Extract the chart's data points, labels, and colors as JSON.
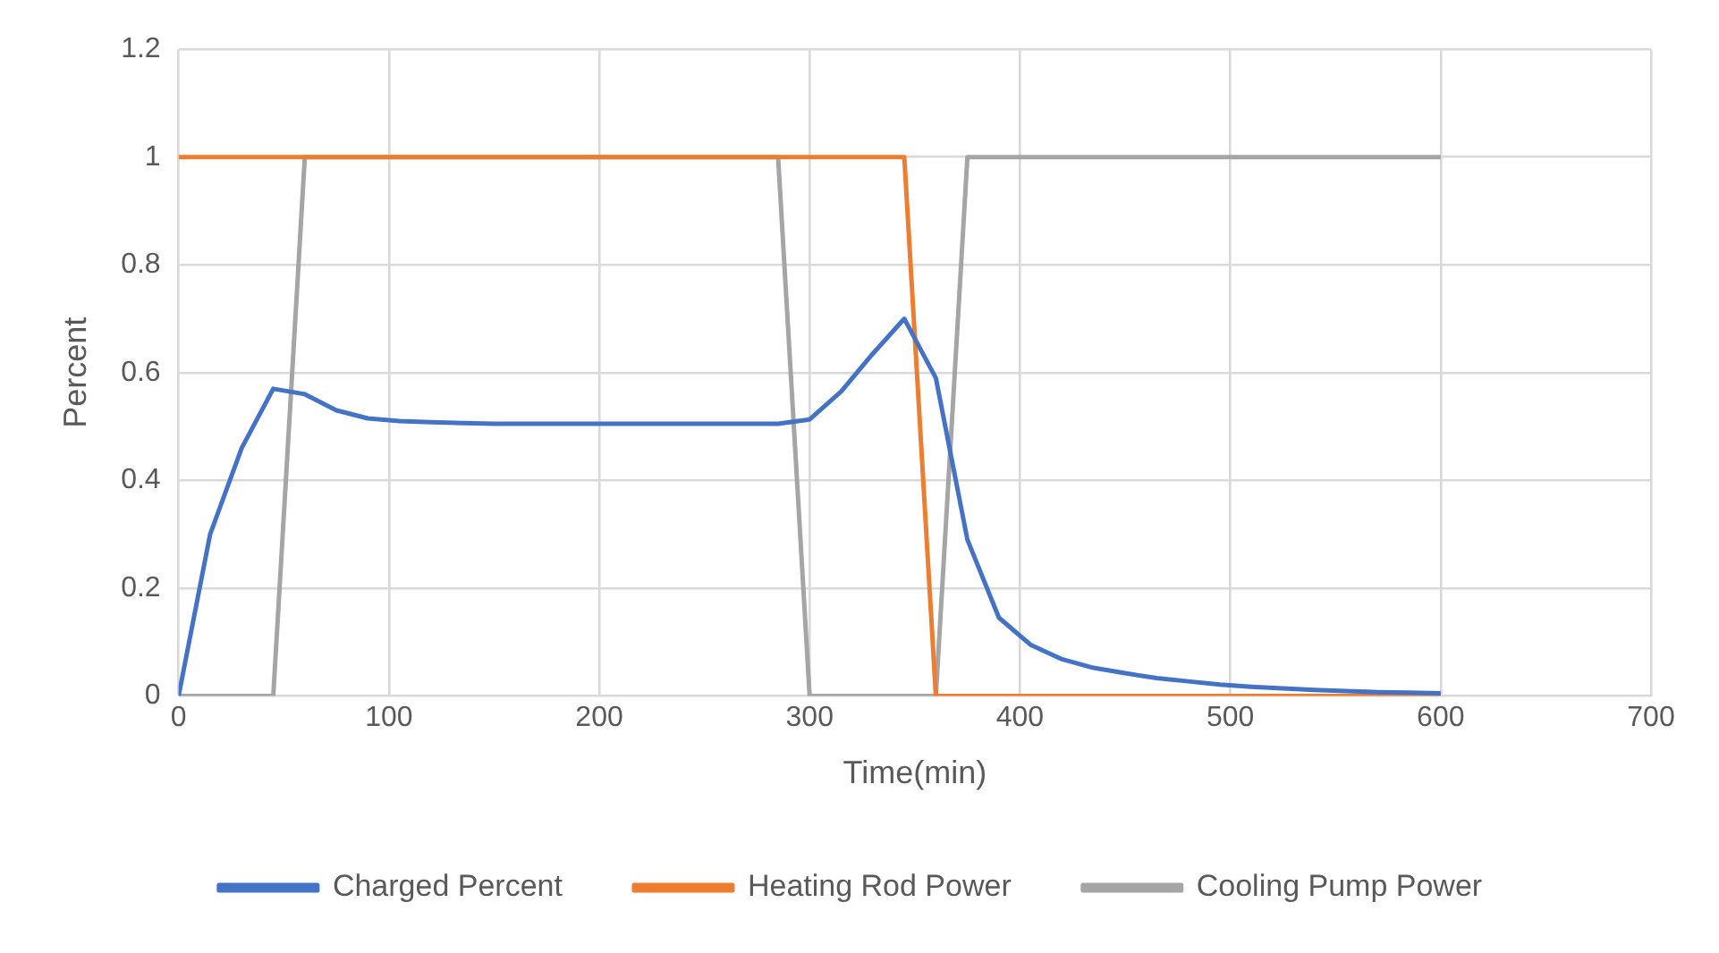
{
  "chart_data": {
    "type": "line",
    "xlabel": "Time(min)",
    "ylabel": "Percent",
    "xlim": [
      0,
      700
    ],
    "xticks": [
      0,
      100,
      200,
      300,
      400,
      500,
      600,
      700
    ],
    "ylim": [
      0,
      1.2
    ],
    "yticks": [
      0,
      {
        "value": 0.2,
        "label": "0.2"
      },
      {
        "value": 0.4,
        "label": "0.4"
      },
      {
        "value": 0.6,
        "label": "0.6"
      },
      {
        "value": 0.8,
        "label": "0.8"
      },
      1,
      {
        "value": 1.2,
        "label": "1.2"
      }
    ],
    "grid": true,
    "legend": "bottom",
    "marker": "none",
    "line_style": "solid",
    "series": [
      {
        "name": "Charged Percent",
        "color": "#4472c4",
        "x": [
          0,
          15,
          30,
          45,
          60,
          75,
          90,
          105,
          120,
          150,
          200,
          250,
          285,
          300,
          315,
          330,
          345,
          360,
          375,
          390,
          405,
          420,
          435,
          450,
          465,
          480,
          495,
          510,
          525,
          540,
          555,
          570,
          585,
          600
        ],
        "values": [
          0,
          0.3,
          0.46,
          0.57,
          0.56,
          0.53,
          0.515,
          0.51,
          0.508,
          0.505,
          0.505,
          0.505,
          0.505,
          0.513,
          0.565,
          0.635,
          0.7,
          0.59,
          0.29,
          0.145,
          0.095,
          0.068,
          0.052,
          0.042,
          0.033,
          0.027,
          0.021,
          0.017,
          0.014,
          0.011,
          0.009,
          0.007,
          0.006,
          0.005
        ]
      },
      {
        "name": "Heating Rod Power",
        "color": "#ed7d31",
        "x": [
          0,
          345,
          360,
          600
        ],
        "values": [
          1,
          1,
          0,
          0
        ]
      },
      {
        "name": "Cooling Pump Power",
        "color": "#a5a5a5",
        "x": [
          0,
          45,
          60,
          285,
          300,
          360,
          375,
          600
        ],
        "values": [
          0,
          0,
          1,
          1,
          0,
          0,
          1,
          1
        ]
      }
    ]
  }
}
